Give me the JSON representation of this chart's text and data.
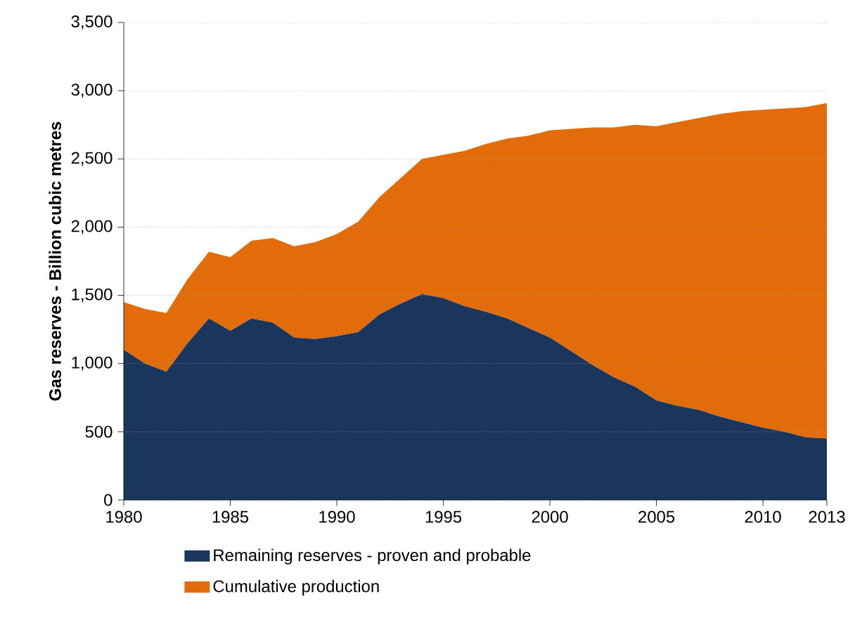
{
  "chart_data": {
    "type": "area",
    "stacked": true,
    "ylabel": "Gas reserves - Billion cubic metres",
    "x": [
      1980,
      1981,
      1982,
      1983,
      1984,
      1985,
      1986,
      1987,
      1988,
      1989,
      1990,
      1991,
      1992,
      1993,
      1994,
      1995,
      1996,
      1997,
      1998,
      1999,
      2000,
      2001,
      2002,
      2003,
      2004,
      2005,
      2006,
      2007,
      2008,
      2009,
      2010,
      2011,
      2012,
      2013
    ],
    "series": [
      {
        "name": "Remaining reserves - proven and probable",
        "color": "#1a365d",
        "values": [
          1100,
          1000,
          940,
          1150,
          1330,
          1240,
          1330,
          1300,
          1190,
          1180,
          1200,
          1230,
          1360,
          1440,
          1510,
          1480,
          1420,
          1380,
          1330,
          1260,
          1190,
          1090,
          990,
          900,
          830,
          730,
          690,
          660,
          610,
          570,
          530,
          500,
          460,
          450
        ]
      },
      {
        "name": "Cumulative production",
        "color": "#e36c0a",
        "values": [
          350,
          400,
          430,
          470,
          490,
          540,
          570,
          620,
          670,
          710,
          750,
          810,
          860,
          920,
          990,
          1050,
          1140,
          1230,
          1320,
          1410,
          1520,
          1630,
          1740,
          1830,
          1920,
          2010,
          2080,
          2140,
          2220,
          2280,
          2330,
          2370,
          2420,
          2460
        ]
      }
    ],
    "xlim": [
      1980,
      2013
    ],
    "xticks": [
      1980,
      1985,
      1990,
      1995,
      2000,
      2005,
      2010,
      2013
    ],
    "ylim": [
      0,
      3500
    ],
    "yticks": [
      0,
      500,
      {
        "value": 1000,
        "label": "1,000"
      },
      {
        "value": 1500,
        "label": "1,500"
      },
      {
        "value": 2000,
        "label": "2,000"
      },
      {
        "value": 2500,
        "label": "2,500"
      },
      {
        "value": 3000,
        "label": "3,000"
      },
      {
        "value": 3500,
        "label": "3,500"
      }
    ],
    "grid": "y",
    "legend": "bottom"
  }
}
